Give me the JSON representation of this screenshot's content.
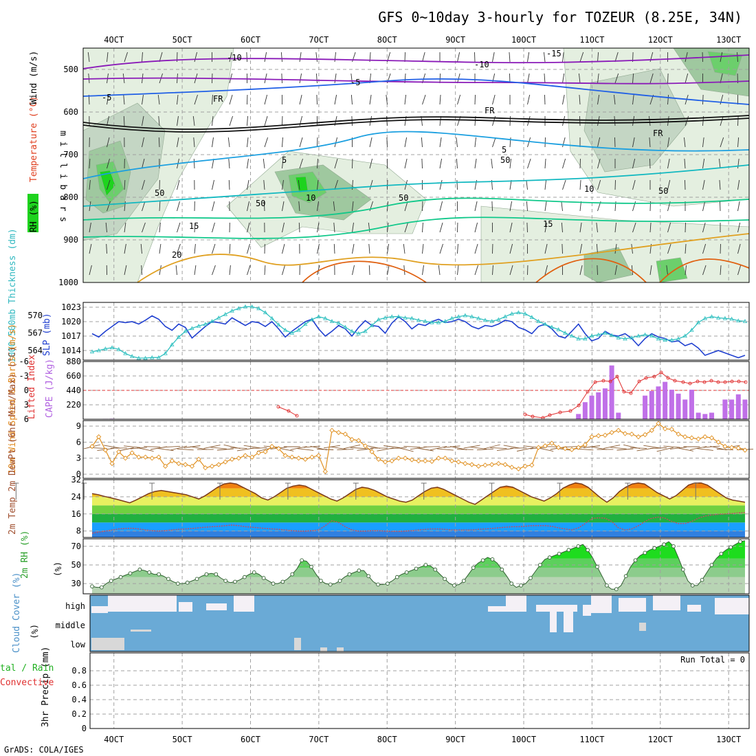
{
  "title": "GFS 0~10day 3-hourly for TOZEUR (8.25E, 34N)",
  "credit": "GrADS: COLA/IGES",
  "colors": {
    "rh_light": "#e4efe0",
    "rh_mid": "#c4d6c4",
    "rh_dark": "#9fc89f",
    "rh_green": "#6ccf6c",
    "rh_bright": "#1ed31e",
    "temp_purple": "#8a1ab8",
    "temp_blue": "#1f5fe6",
    "temp_lightblue": "#1a9fe0",
    "temp_cyan": "#10b8c0",
    "temp_teal": "#10c88a",
    "temp_orange": "#e0a020",
    "temp_darkorange": "#e06010",
    "slp": "#1f3fd0",
    "thickness": "#30c0c0",
    "cape": "#c070e8",
    "lifted": "#e03030",
    "wind_speed": "#e09020",
    "wind_barb": "#8a5a30",
    "temp_line": "#7a3a1a",
    "dewpt_line": "#c05060",
    "rh2m": "#3aaa3a",
    "cloud": "#6aaad6",
    "cloud_clear": "#f4f0f6"
  },
  "x_axis": {
    "ticks": [
      "4OCT",
      "5OCT",
      "6OCT",
      "7OCT",
      "8OCT",
      "9OCT",
      "10OCT",
      "11OCT",
      "12OCT",
      "13OCT"
    ],
    "unit": "days",
    "range": [
      3.55,
      13.3
    ]
  },
  "chart_data": [
    {
      "id": "upper-air",
      "type": "heatmap",
      "ylabel_parts": [
        "RH (%)",
        "Temperature (°C)",
        "Wind (m/s)"
      ],
      "ylabel_side": "m i l l i b a r s",
      "y_ticks": [
        500,
        600,
        700,
        800,
        900,
        1000
      ],
      "ylim": [
        450,
        1000
      ],
      "contour_labels": [
        "-10",
        "-15",
        "-10",
        "-5",
        "-5",
        "FR",
        "FR",
        "FR",
        "5",
        "5",
        "10",
        "10",
        "15",
        "15",
        "20",
        "50",
        "50",
        "50",
        "50",
        "50"
      ]
    },
    {
      "id": "slp-thickness",
      "type": "line",
      "ylabel_left": "1000-500mb Thickness (dm)",
      "ylabel_right": "SLP (mb)",
      "thickness_ticks": [
        564,
        567,
        570
      ],
      "slp_ticks": [
        1014,
        1017,
        1020,
        1023
      ],
      "series": [
        {
          "name": "SLP (mb)",
          "values": [
            1017.5,
            1016.8,
            1018.0,
            1019.0,
            1020.0,
            1019.8,
            1020.0,
            1019.5,
            1020.3,
            1021.2,
            1020.5,
            1019.0,
            1018.2,
            1019.5,
            1018.8,
            1016.6,
            1017.8,
            1019.0,
            1020.0,
            1019.8,
            1019.5,
            1020.8,
            1020.0,
            1019.2,
            1020.0,
            1019.8,
            1019.0,
            1020.0,
            1018.5,
            1016.8,
            1018.0,
            1019.0,
            1020.0,
            1020.5,
            1018.5,
            1017.0,
            1018.0,
            1019.2,
            1018.5,
            1017.0,
            1018.8,
            1020.2,
            1019.2,
            1019.0,
            1017.6,
            1019.7,
            1021.0,
            1020.0,
            1018.5,
            1019.5,
            1019.2,
            1020.0,
            1020.5,
            1019.8,
            1020.0,
            1020.5,
            1020.0,
            1019.0,
            1018.5,
            1019.2,
            1019.0,
            1019.5,
            1020.3,
            1020.0,
            1018.8,
            1018.3,
            1017.5,
            1019.0,
            1019.5,
            1018.5,
            1017.0,
            1016.6,
            1018.0,
            1019.5,
            1017.5,
            1016.0,
            1016.5,
            1018.0,
            1017.2,
            1017.0,
            1017.5,
            1016.5,
            1015.0,
            1016.5,
            1017.5,
            1016.8,
            1016.5,
            1015.8,
            1016.0,
            1015.0,
            1015.5,
            1014.5,
            1013.0,
            1013.5,
            1014.0,
            1013.5,
            1013.0,
            1012.5,
            1013.0
          ]
        },
        {
          "name": "Thickness (dm)",
          "values": [
            563.8,
            564.0,
            564.3,
            564.5,
            564.2,
            563.5,
            563.0,
            562.7,
            562.7,
            562.8,
            562.8,
            563.5,
            565.0,
            566.3,
            567.3,
            567.8,
            568.2,
            568.5,
            569.0,
            569.6,
            570.2,
            570.8,
            571.2,
            571.5,
            571.5,
            571.2,
            570.5,
            569.5,
            568.4,
            567.5,
            567.0,
            567.5,
            568.5,
            569.3,
            569.8,
            569.5,
            569.0,
            568.7,
            568.0,
            567.3,
            566.9,
            567.3,
            568.3,
            569.3,
            569.6,
            569.8,
            569.8,
            569.6,
            569.5,
            569.2,
            569.0,
            568.8,
            568.8,
            569.0,
            569.5,
            569.8,
            570.0,
            569.8,
            569.5,
            569.2,
            569.0,
            569.3,
            569.8,
            570.3,
            570.5,
            570.3,
            569.7,
            569.0,
            568.5,
            568.0,
            567.6,
            567.0,
            566.5,
            566.0,
            566.0,
            566.5,
            566.7,
            567.0,
            566.6,
            566.2,
            566.0,
            566.2,
            566.5,
            566.7,
            566.5,
            566.0,
            565.8,
            565.8,
            566.0,
            566.5,
            567.5,
            568.8,
            569.5,
            569.8,
            569.6,
            569.5,
            569.4,
            569.1,
            569.0
          ]
        }
      ]
    },
    {
      "id": "cape-lifted",
      "type": "bar",
      "ylabel_left": "Lifted Index",
      "ylabel_right": "CAPE (J/kg)",
      "li_ticks": [
        "6",
        "3",
        "0",
        "-3",
        "-6"
      ],
      "cape_ticks": [
        220,
        440,
        660,
        880
      ],
      "series": [
        {
          "name": "CAPE (J/kg)",
          "values": [
            0,
            3,
            6,
            8,
            3,
            0,
            0,
            0,
            0,
            0,
            0,
            0,
            0,
            0,
            0,
            0,
            0,
            0,
            0,
            0,
            0,
            0,
            0,
            0,
            0,
            0,
            0,
            0,
            0,
            0,
            0,
            0,
            0,
            0,
            0,
            0,
            0,
            0,
            0,
            0,
            0,
            0,
            0,
            0,
            0,
            0,
            0,
            0,
            0,
            0,
            0,
            0,
            0,
            0,
            0,
            0,
            0,
            0,
            0,
            0,
            0,
            0,
            0,
            0,
            0,
            0,
            0,
            0,
            0,
            0,
            0,
            0,
            0,
            80,
            260,
            360,
            410,
            470,
            820,
            100,
            0,
            0,
            0,
            360,
            430,
            500,
            570,
            450,
            390,
            300,
            450,
            100,
            80,
            100,
            0,
            300,
            300,
            380,
            300
          ]
        },
        {
          "name": "Lifted Index",
          "values": [
            null,
            null,
            null,
            null,
            null,
            null,
            null,
            null,
            null,
            null,
            null,
            null,
            null,
            null,
            null,
            null,
            null,
            null,
            null,
            null,
            null,
            null,
            null,
            null,
            null,
            null,
            null,
            null,
            null,
            null,
            null,
            null,
            null,
            null,
            null,
            null,
            null,
            null,
            null,
            null,
            null,
            null,
            null,
            null,
            null,
            null,
            null,
            null,
            null,
            null,
            null,
            null,
            null,
            null,
            null,
            null,
            null,
            null,
            null,
            null,
            null,
            null,
            null,
            null,
            null,
            null,
            null,
            null,
            null,
            null,
            null,
            null,
            null,
            null,
            null,
            null,
            null,
            null,
            null,
            null,
            null,
            null,
            null,
            null,
            null,
            null,
            null,
            null,
            null,
            null,
            null,
            null,
            null,
            null,
            null,
            null,
            null,
            null,
            null
          ]
        }
      ]
    },
    {
      "id": "wind10m",
      "type": "line",
      "ylabel": "10m Wind Speed & Barbs (m/s)",
      "y_ticks": [
        0,
        3,
        6,
        9
      ],
      "ylim": [
        0,
        10
      ],
      "series": [
        {
          "name": "Speed",
          "values": [
            5.2,
            7.0,
            4.5,
            2.0,
            4.2,
            3.0,
            4.0,
            3.2,
            3.2,
            3.0,
            3.2,
            1.5,
            2.5,
            2.0,
            1.8,
            1.5,
            2.8,
            1.2,
            1.5,
            1.8,
            2.3,
            2.8,
            3.0,
            3.5,
            3.2,
            4.0,
            4.2,
            5.2,
            4.8,
            3.5,
            3.2,
            3.0,
            2.8,
            3.2,
            3.5,
            0.5,
            8.2,
            7.8,
            7.5,
            6.5,
            6.3,
            5.3,
            4.2,
            2.8,
            2.3,
            2.5,
            3.0,
            3.0,
            2.7,
            2.5,
            2.5,
            2.4,
            3.0,
            3.0,
            2.5,
            2.3,
            2.0,
            1.8,
            1.5,
            1.7,
            1.8,
            2.0,
            1.8,
            1.3,
            1.0,
            1.5,
            1.7,
            5.0,
            5.3,
            5.8,
            5.0,
            4.8,
            4.6,
            5.0,
            5.5,
            7.0,
            7.2,
            7.3,
            7.8,
            8.2,
            7.6,
            7.5,
            7.0,
            7.4,
            8.2,
            9.5,
            8.5,
            8.4,
            7.5,
            7.0,
            6.8,
            6.6,
            7.0,
            6.8,
            6.0,
            5.2,
            5.0,
            4.9,
            4.5
          ]
        }
      ]
    },
    {
      "id": "temp2m",
      "type": "area",
      "ylabel": "2m Temp 2m DewPt (6hr Min/Max) (°C)",
      "y_ticks": [
        8,
        16,
        24,
        32
      ],
      "ylim": [
        5,
        32
      ],
      "series": [
        {
          "name": "2m Temp",
          "values": [
            25.5,
            25.0,
            24.2,
            23.5,
            22.8,
            22.0,
            21.2,
            22.5,
            24.0,
            25.5,
            26.5,
            27.0,
            26.5,
            26.0,
            25.5,
            25.0,
            24.0,
            23.0,
            24.5,
            26.5,
            28.5,
            30.0,
            30.5,
            30.0,
            28.5,
            27.0,
            25.5,
            23.5,
            22.5,
            24.0,
            26.0,
            28.0,
            29.0,
            29.5,
            29.0,
            27.5,
            26.0,
            24.5,
            23.0,
            22.0,
            23.5,
            25.5,
            27.5,
            28.5,
            28.0,
            27.0,
            25.5,
            24.0,
            23.0,
            22.0,
            21.5,
            22.5,
            24.5,
            26.5,
            28.0,
            28.5,
            27.5,
            26.0,
            24.5,
            23.0,
            21.5,
            20.5,
            22.5,
            24.5,
            26.5,
            28.5,
            29.0,
            28.5,
            27.0,
            25.5,
            24.0,
            23.0,
            22.0,
            23.5,
            25.5,
            28.0,
            29.5,
            30.5,
            30.0,
            28.5,
            26.0,
            23.5,
            21.5,
            23.5,
            26.5,
            28.5,
            30.0,
            30.5,
            30.0,
            28.0,
            26.0,
            24.5,
            23.0,
            24.5,
            27.0,
            29.5,
            30.5,
            30.5,
            29.5,
            27.5,
            25.5,
            23.5,
            22.5,
            22.0,
            21.5
          ]
        },
        {
          "name": "2m DewPt",
          "values": [
            7.0,
            7.5,
            8.0,
            8.5,
            9.0,
            9.2,
            9.3,
            9.0,
            8.5,
            8.2,
            8.0,
            8.2,
            8.5,
            8.8,
            9.0,
            9.2,
            9.5,
            9.8,
            10.0,
            10.2,
            10.5,
            10.8,
            10.5,
            10.0,
            9.8,
            9.5,
            9.2,
            9.0,
            8.8,
            8.5,
            8.2,
            8.0,
            8.0,
            8.2,
            8.5,
            10.5,
            12.8,
            12.0,
            10.0,
            8.5,
            8.0,
            8.0,
            8.2,
            8.2,
            8.0,
            7.8,
            7.8,
            8.0,
            8.2,
            8.5,
            8.8,
            9.0,
            9.0,
            8.8,
            8.5,
            8.5,
            8.5,
            8.5,
            8.8,
            9.0,
            9.2,
            9.5,
            9.8,
            10.0,
            10.0,
            10.2,
            10.5,
            10.5,
            10.5,
            10.2,
            9.5,
            9.0,
            8.5,
            9.5,
            11.5,
            13.8,
            14.2,
            14.0,
            12.5,
            9.5,
            8.5,
            9.0,
            10.5,
            12.5,
            14.0,
            14.5,
            14.0,
            12.5,
            11.5,
            11.5,
            12.5,
            14.0,
            15.0,
            15.5,
            15.8,
            16.0,
            16.2,
            16.5,
            16.6
          ]
        }
      ]
    },
    {
      "id": "rh2m",
      "type": "area",
      "ylabel": "2m RH (%)",
      "y_ticks": [
        30,
        50,
        70
      ],
      "ylim": [
        22,
        78
      ],
      "series": [
        {
          "name": "2m RH",
          "values": [
            27,
            26,
            26,
            30,
            33,
            35,
            37,
            39,
            41,
            43,
            45,
            44,
            42,
            40,
            40,
            38,
            35,
            32,
            30,
            30,
            31,
            33,
            35,
            38,
            40,
            41,
            40,
            36,
            33,
            31,
            32,
            34,
            37,
            40,
            42,
            40,
            36,
            33,
            30,
            30,
            32,
            35,
            40,
            46,
            55,
            54,
            48,
            40,
            33,
            30,
            29,
            30,
            33,
            37,
            40,
            42,
            44,
            44,
            38,
            32,
            29,
            29,
            30,
            33,
            37,
            40,
            42,
            44,
            46,
            48,
            50,
            49,
            45,
            40,
            35,
            30,
            28,
            29,
            33,
            40,
            47,
            52,
            55,
            58,
            56,
            52,
            45,
            38,
            30,
            26,
            28,
            30,
            36,
            43,
            50,
            56,
            58,
            60,
            62,
            64,
            66,
            68,
            70,
            72,
            66,
            58,
            48,
            38,
            28,
            24,
            24,
            28,
            38,
            48,
            55,
            60,
            63,
            66,
            68,
            70,
            72,
            75,
            70,
            58,
            45,
            33,
            28,
            28,
            34,
            42,
            50,
            57,
            62,
            66,
            69,
            72,
            75,
            76
          ]
        }
      ]
    },
    {
      "id": "cloud",
      "type": "bar",
      "ylabel": "Cloud Cover (%)",
      "layers": [
        "high",
        "middle",
        "low"
      ]
    },
    {
      "id": "precip",
      "type": "bar",
      "ylabel": "3hr Precip (mm)",
      "legend_left": [
        "tal / Rain",
        "Convective"
      ],
      "annotation": "Run Total = 0",
      "y_ticks": [
        "0",
        "0.2",
        "0.4",
        "0.6",
        "0.8"
      ],
      "ylim": [
        0,
        1
      ]
    }
  ]
}
